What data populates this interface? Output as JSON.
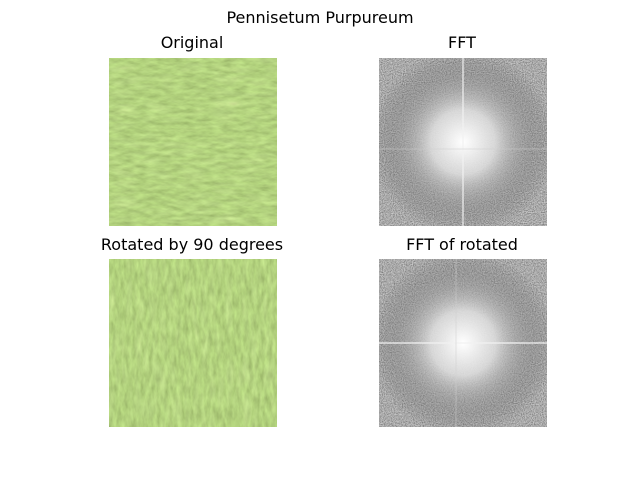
{
  "figure": {
    "title": "Pennisetum Purpureum"
  },
  "panels": {
    "original": {
      "title": "Original"
    },
    "fft": {
      "title": "FFT"
    },
    "rotated": {
      "title": "Rotated by 90 degrees"
    },
    "fft_rotated": {
      "title": "FFT of rotated"
    }
  },
  "colors": {
    "grass_dark": "#5f7f2a",
    "grass_mid": "#8fb04a",
    "grass_light": "#c7db8a",
    "fft_bg": "#222222"
  }
}
